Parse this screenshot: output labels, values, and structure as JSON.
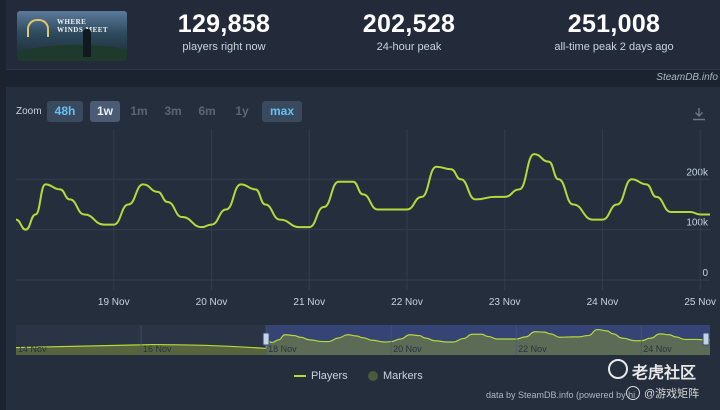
{
  "game": {
    "thumbnail_title_lines": [
      "WHERE",
      "WINDS MEET"
    ]
  },
  "stats": [
    {
      "value": "129,858",
      "label": "players right now"
    },
    {
      "value": "202,528",
      "label": "24-hour peak"
    },
    {
      "value": "251,008",
      "label": "all-time peak 2 days ago"
    }
  ],
  "attribution_top": "SteamDB.info",
  "zoom": {
    "label": "Zoom",
    "options": [
      "48h",
      "1w",
      "1m",
      "3m",
      "6m",
      "1y",
      "max"
    ],
    "current": "1w",
    "available": [
      "48h",
      "1w",
      "max"
    ]
  },
  "icons": {
    "download": "download-icon"
  },
  "colors": {
    "line": "#b6d93a",
    "active": "#66c0f4",
    "navigator_fill": "#3a4a8a"
  },
  "chart_data": {
    "type": "line",
    "series": [
      {
        "name": "Players",
        "x": [
          18.0,
          18.1,
          18.2,
          18.3,
          18.45,
          18.55,
          18.7,
          18.9,
          19.0,
          19.15,
          19.3,
          19.45,
          19.55,
          19.7,
          19.9,
          20.0,
          20.15,
          20.3,
          20.45,
          20.55,
          20.7,
          20.9,
          21.0,
          21.15,
          21.3,
          21.45,
          21.55,
          21.7,
          21.9,
          22.0,
          22.15,
          22.3,
          22.45,
          22.55,
          22.7,
          22.9,
          23.0,
          23.15,
          23.3,
          23.45,
          23.55,
          23.7,
          23.9,
          24.0,
          24.15,
          24.3,
          24.45,
          24.55,
          24.7,
          24.9,
          25.0,
          25.1
        ],
        "values": [
          120000,
          100000,
          130000,
          190000,
          180000,
          160000,
          130000,
          110000,
          110000,
          150000,
          190000,
          175000,
          155000,
          125000,
          105000,
          110000,
          140000,
          190000,
          180000,
          150000,
          120000,
          105000,
          105000,
          145000,
          195000,
          195000,
          170000,
          140000,
          140000,
          140000,
          165000,
          225000,
          220000,
          200000,
          160000,
          165000,
          165000,
          180000,
          250000,
          235000,
          200000,
          150000,
          120000,
          120000,
          150000,
          200000,
          190000,
          165000,
          135000,
          135000,
          130000,
          130000
        ]
      }
    ],
    "legend": [
      "Players",
      "Markers"
    ],
    "x_ticks": [
      "19 Nov",
      "20 Nov",
      "21 Nov",
      "22 Nov",
      "23 Nov",
      "24 Nov",
      "25 Nov"
    ],
    "x_tick_values": [
      19,
      20,
      21,
      22,
      23,
      24,
      25
    ],
    "y_ticks": [
      "0",
      "100k",
      "200k"
    ],
    "y_tick_values": [
      0,
      100000,
      200000
    ],
    "ylim": [
      0,
      280000
    ],
    "xlim": [
      18.0,
      25.1
    ],
    "grid": true,
    "legend_placement": "bottom",
    "navigator": {
      "labels": [
        "14 Nov",
        "16 Nov",
        "18 Nov",
        "20 Nov",
        "22 Nov",
        "24 Nov"
      ],
      "label_values": [
        14,
        16,
        18,
        20,
        22,
        24
      ],
      "xlim": [
        14.0,
        25.1
      ],
      "selection": [
        18.0,
        25.1
      ]
    }
  },
  "attribution_bottom": "data by SteamDB.info (powered by hi",
  "watermark": {
    "line1": "老虎社区",
    "line2": "@游戏矩阵"
  }
}
